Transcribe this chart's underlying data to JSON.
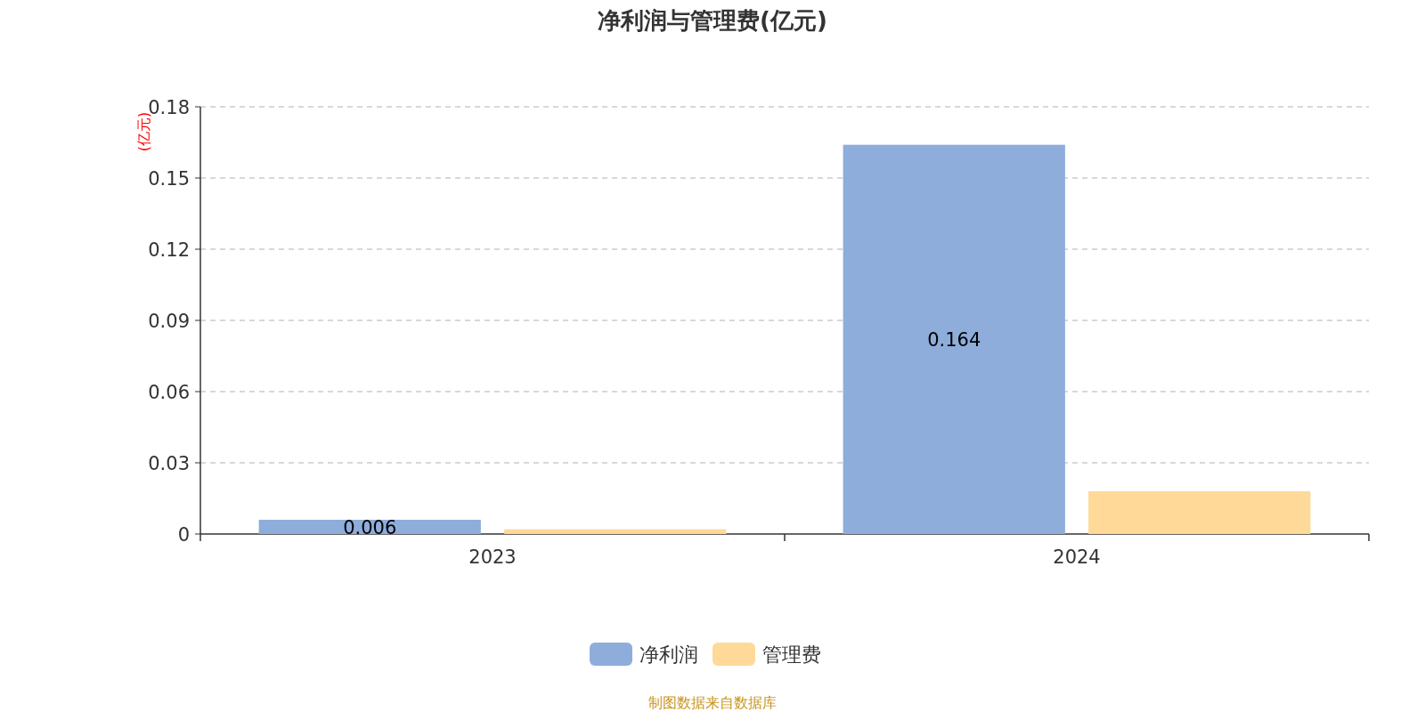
{
  "chart_data": {
    "type": "bar",
    "title": "净利润与管理费(亿元)",
    "ylabel": "(亿元)",
    "categories": [
      "2023",
      "2024"
    ],
    "series": [
      {
        "name": "净利润",
        "color": "#8eaddb",
        "values": [
          0.006,
          0.164
        ],
        "value_labels": [
          "0.006",
          "0.164"
        ]
      },
      {
        "name": "管理费",
        "color": "#fed998",
        "values": [
          0.002,
          0.018
        ]
      }
    ],
    "ylim": [
      0,
      0.18
    ],
    "yticks": [
      0,
      0.03,
      0.06,
      0.09,
      0.12,
      0.15,
      0.18
    ],
    "grid": "y",
    "legend": "bottom",
    "annotations": [
      "制图数据来自数据库"
    ]
  }
}
